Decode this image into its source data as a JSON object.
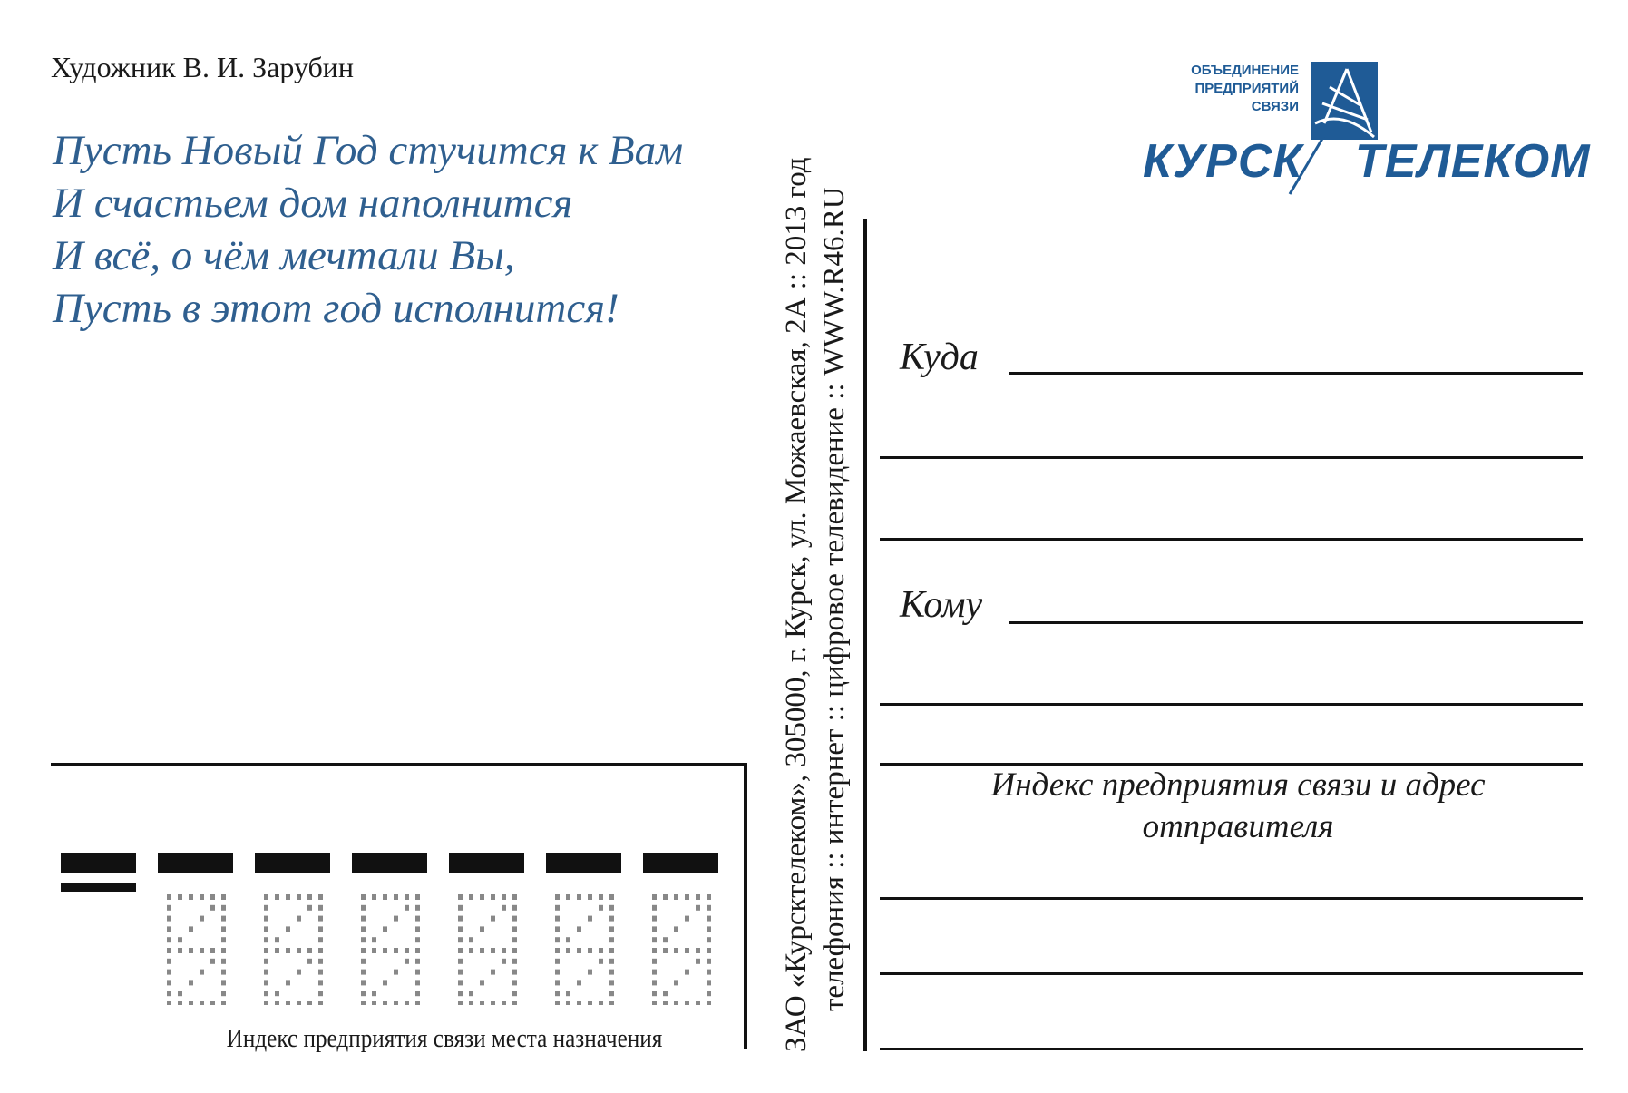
{
  "artist": "Художник В. И. Зарубин",
  "poem": [
    "Пусть Новый Год стучится к Вам",
    "И счастьем дом наполнится",
    "И всё, о чём мечтали Вы,",
    "Пусть в этот год исполнится!"
  ],
  "logo": {
    "small_lines": [
      "ОБЪЕДИНЕНИЕ",
      "ПРЕДПРИЯТИЙ",
      "СВЯЗИ"
    ],
    "word1": "КУРСК",
    "word2": "ТЕЛЕКОМ",
    "color": "#1f5b96"
  },
  "imprint": {
    "line1": "ЗАО «Курсктелеком», 305000, г. Курск, ул. Можаевская, 2А :: 2013 год",
    "line2": "телефония :: интернет :: цифровое телевидение :: WWW.R46.RU"
  },
  "address": {
    "to_where_label": "Куда",
    "to_whom_label": "Кому",
    "sender_label": "Индекс предприятия связи и адрес отправителя"
  },
  "postcode": {
    "label": "Индекс предприятия связи места назначения",
    "digit_count": 6
  },
  "colors": {
    "poem": "#2f5f8f",
    "ink": "#111111",
    "template_dots": "#888888"
  }
}
